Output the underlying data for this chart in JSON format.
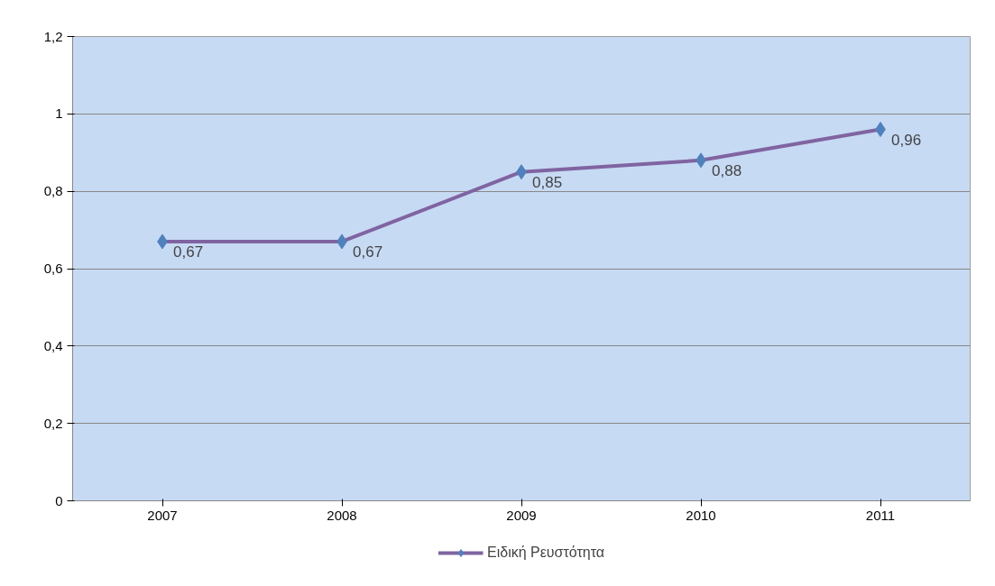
{
  "chart_data": {
    "type": "line",
    "categories": [
      "2007",
      "2008",
      "2009",
      "2010",
      "2011"
    ],
    "series": [
      {
        "name": "Ειδική Ρευστότητα",
        "color": "#8064a2",
        "values": [
          0.67,
          0.67,
          0.85,
          0.88,
          0.96
        ],
        "value_labels": [
          "0,67",
          "0,67",
          "0,85",
          "0,88",
          "0,96"
        ]
      }
    ],
    "ylim": [
      0,
      1.2
    ],
    "yticks": [
      0,
      {
        "value": 0.2,
        "label": "0,2"
      },
      {
        "value": 0.4,
        "label": "0,4"
      },
      {
        "value": 0.6,
        "label": "0,6"
      },
      {
        "value": 0.8,
        "label": "0,8"
      },
      1,
      {
        "value": 1.2,
        "label": "1,2"
      }
    ],
    "grid": "y",
    "legend": "bottom",
    "marker": "diamond",
    "line_style": "solid"
  }
}
